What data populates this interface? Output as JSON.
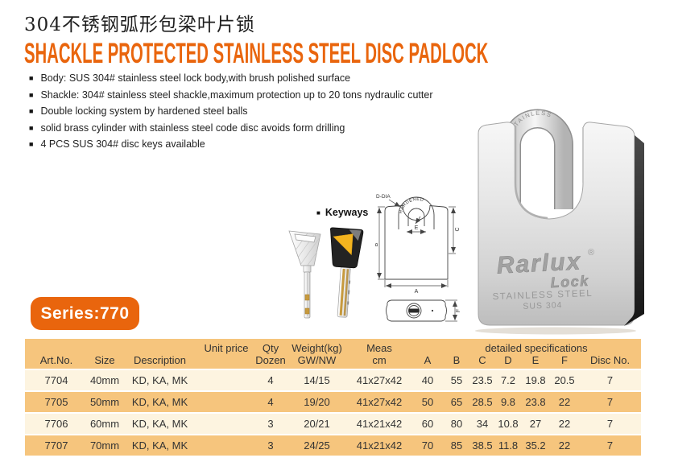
{
  "header": {
    "title_cn": "304不锈钢弧形包梁叶片锁",
    "title_en": "SHACKLE PROTECTED STAINLESS STEEL DISC PADLOCK"
  },
  "features": [
    "Body: SUS 304# stainless steel lock body,with brush polished surface",
    "Shackle: 304# stainless steel shackle,maximum protection up to 20 tons nydraulic cutter",
    "Double locking system by hardened steel balls",
    "solid brass cylinder with stainless steel code disc avoids form drilling",
    "4 PCS SUS 304# disc keys available"
  ],
  "glyphs": {
    "square_bullet": "■"
  },
  "keyways": {
    "label": "Keyways"
  },
  "diagram": {
    "d_dia": "D-DIA",
    "hardened": "HARDENED",
    "dim_a": "A",
    "dim_b": "B",
    "dim_c": "C",
    "dim_e": "E",
    "dim_f": "F"
  },
  "padlock": {
    "shackle_text": "STAINLESS",
    "brand": "Rarlux",
    "registered_mark": "®",
    "brand_sub": "Lock",
    "engraving_line1": "STAINLESS STEEL",
    "engraving_line2": "SUS 304"
  },
  "series": {
    "label": "Series:770"
  },
  "table": {
    "header": {
      "art": "Art.No.",
      "size": "Size",
      "description": "Description",
      "unit_price": "Unit price",
      "qty_top": "Qty",
      "qty_bottom": "Dozen",
      "weight_top": "Weight(kg)",
      "weight_bottom": "GW/NW",
      "meas_top": "Meas",
      "meas_bottom": "cm",
      "detailed_specs": "detailed specifications",
      "spec_letters": [
        "A",
        "B",
        "C",
        "D",
        "E",
        "F"
      ],
      "disc": "Disc No."
    },
    "rows": [
      {
        "art": "7704",
        "size": "40mm",
        "desc": "KD, KA, MK",
        "unit": "",
        "qty": "4",
        "weight": "14/15",
        "meas": "41x27x42",
        "A": "40",
        "B": "55",
        "C": "23.5",
        "D": "7.2",
        "E": "19.8",
        "F": "20.5",
        "disc": "7"
      },
      {
        "art": "7705",
        "size": "50mm",
        "desc": "KD, KA, MK",
        "unit": "",
        "qty": "4",
        "weight": "19/20",
        "meas": "41x27x42",
        "A": "50",
        "B": "65",
        "C": "28.5",
        "D": "9.8",
        "E": "23.8",
        "F": "22",
        "disc": "7"
      },
      {
        "art": "7706",
        "size": "60mm",
        "desc": "KD, KA, MK",
        "unit": "",
        "qty": "3",
        "weight": "20/21",
        "meas": "41x21x42",
        "A": "60",
        "B": "80",
        "C": "34",
        "D": "10.8",
        "E": "27",
        "F": "22",
        "disc": "7"
      },
      {
        "art": "7707",
        "size": "70mm",
        "desc": "KD, KA, MK",
        "unit": "",
        "qty": "3",
        "weight": "24/25",
        "meas": "41x21x42",
        "A": "70",
        "B": "85",
        "C": "38.5",
        "D": "11.8",
        "E": "35.2",
        "F": "22",
        "disc": "7"
      }
    ]
  },
  "colors": {
    "accent": "#e9650d",
    "table_orange": "#f6c57d",
    "table_cream": "#fdf4e0",
    "text_dark": "#333333"
  }
}
